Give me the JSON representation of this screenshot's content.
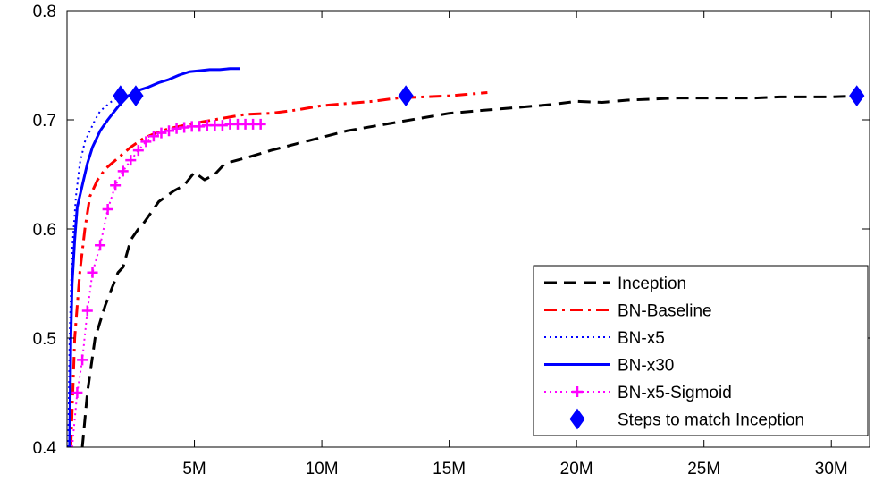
{
  "chart_data": {
    "type": "line",
    "title": "",
    "xlabel": "",
    "ylabel": "",
    "xlim": [
      0,
      31500000
    ],
    "ylim": [
      0.4,
      0.8
    ],
    "x_ticks": [
      {
        "value": 5000000,
        "label": "5M"
      },
      {
        "value": 10000000,
        "label": "10M"
      },
      {
        "value": 15000000,
        "label": "15M"
      },
      {
        "value": 20000000,
        "label": "20M"
      },
      {
        "value": 25000000,
        "label": "25M"
      },
      {
        "value": 30000000,
        "label": "30M"
      }
    ],
    "y_ticks": [
      {
        "value": 0.4,
        "label": "0.4"
      },
      {
        "value": 0.5,
        "label": "0.5"
      },
      {
        "value": 0.6,
        "label": "0.6"
      },
      {
        "value": 0.7,
        "label": "0.7"
      },
      {
        "value": 0.8,
        "label": "0.8"
      }
    ],
    "grid": false,
    "legend_position": "bottom-right",
    "series": [
      {
        "name": "Inception",
        "color": "#000000",
        "style": "dashed",
        "x": [
          600000,
          800000,
          1100000,
          1500000,
          2000000,
          2200000,
          2500000,
          2800000,
          3000000,
          3300000,
          3600000,
          3900000,
          4200000,
          4600000,
          5000000,
          5400000,
          5800000,
          6200000,
          7000000,
          8000000,
          9000000,
          10000000,
          11000000,
          12000000,
          13000000,
          14000000,
          15000000,
          16000000,
          17000000,
          18000000,
          19000000,
          20000000,
          21000000,
          22000000,
          23000000,
          24000000,
          25000000,
          26000000,
          27000000,
          28000000,
          29000000,
          30000000,
          31000000
        ],
        "y": [
          0.4,
          0.45,
          0.5,
          0.53,
          0.56,
          0.565,
          0.59,
          0.6,
          0.605,
          0.615,
          0.625,
          0.63,
          0.635,
          0.64,
          0.652,
          0.645,
          0.65,
          0.66,
          0.665,
          0.672,
          0.678,
          0.684,
          0.69,
          0.694,
          0.698,
          0.702,
          0.706,
          0.708,
          0.71,
          0.712,
          0.714,
          0.717,
          0.716,
          0.718,
          0.719,
          0.72,
          0.72,
          0.72,
          0.72,
          0.721,
          0.721,
          0.721,
          0.722
        ]
      },
      {
        "name": "BN-Baseline",
        "color": "#ff0000",
        "style": "dashdot",
        "x": [
          150000,
          300000,
          500000,
          700000,
          900000,
          1200000,
          1500000,
          2000000,
          2500000,
          3000000,
          3500000,
          4000000,
          5000000,
          6000000,
          7000000,
          8000000,
          9000000,
          10000000,
          11000000,
          12000000,
          13000000,
          14000000,
          15000000,
          16000000,
          16500000
        ],
        "y": [
          0.4,
          0.5,
          0.56,
          0.6,
          0.63,
          0.645,
          0.655,
          0.665,
          0.675,
          0.683,
          0.688,
          0.692,
          0.697,
          0.701,
          0.705,
          0.706,
          0.709,
          0.713,
          0.715,
          0.717,
          0.72,
          0.721,
          0.722,
          0.724,
          0.725
        ]
      },
      {
        "name": "BN-x5",
        "color": "#0000ff",
        "style": "dotted",
        "x": [
          50000,
          100000,
          200000,
          350000,
          500000,
          700000,
          900000,
          1100000,
          1300000,
          1500000,
          1700000,
          1900000,
          2100000
        ],
        "y": [
          0.4,
          0.5,
          0.58,
          0.63,
          0.66,
          0.68,
          0.69,
          0.7,
          0.708,
          0.712,
          0.716,
          0.719,
          0.721
        ]
      },
      {
        "name": "BN-x30",
        "color": "#0000ff",
        "style": "solid",
        "x": [
          100000,
          150000,
          200000,
          300000,
          400000,
          600000,
          800000,
          1000000,
          1300000,
          1600000,
          2000000,
          2400000,
          2800000,
          3200000,
          3600000,
          4000000,
          4400000,
          4800000,
          5200000,
          5600000,
          6000000,
          6400000,
          6800000
        ],
        "y": [
          0.4,
          0.5,
          0.55,
          0.59,
          0.62,
          0.64,
          0.66,
          0.675,
          0.69,
          0.7,
          0.712,
          0.722,
          0.727,
          0.73,
          0.734,
          0.737,
          0.741,
          0.744,
          0.745,
          0.746,
          0.746,
          0.747,
          0.747
        ]
      },
      {
        "name": "BN-x5-Sigmoid",
        "color": "#ff00ff",
        "style": "dotted-plus",
        "x": [
          200000,
          400000,
          600000,
          800000,
          1000000,
          1300000,
          1600000,
          1900000,
          2200000,
          2500000,
          2800000,
          3100000,
          3400000,
          3700000,
          4000000,
          4300000,
          4600000,
          4900000,
          5200000,
          5500000,
          5800000,
          6100000,
          6400000,
          6700000,
          7000000,
          7300000,
          7600000
        ],
        "y": [
          0.4,
          0.45,
          0.48,
          0.525,
          0.56,
          0.585,
          0.618,
          0.64,
          0.653,
          0.663,
          0.672,
          0.68,
          0.685,
          0.688,
          0.69,
          0.692,
          0.693,
          0.694,
          0.694,
          0.695,
          0.695,
          0.695,
          0.696,
          0.696,
          0.696,
          0.696,
          0.696
        ]
      },
      {
        "name": "Steps to match Inception",
        "color": "#0000ff",
        "style": "marker-diamond",
        "x": [
          2100000,
          2700000,
          13300000,
          31000000
        ],
        "y": [
          0.722,
          0.722,
          0.722,
          0.722
        ]
      }
    ]
  }
}
